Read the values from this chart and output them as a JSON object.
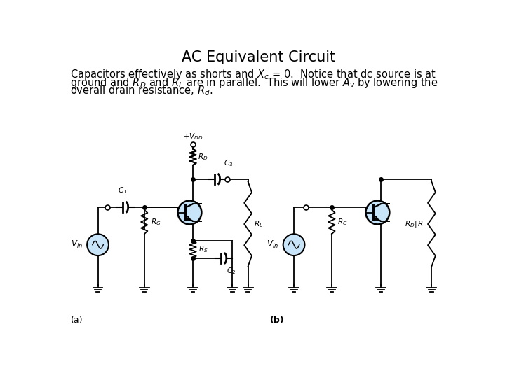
{
  "title": "AC Equivalent Circuit",
  "title_fontsize": 15,
  "body_fontsize": 10.5,
  "background_color": "#ffffff",
  "label_a": "(a)",
  "label_b": "(b)",
  "cc": "#000000",
  "transistor_fill": "#c8e4f8",
  "line_width": 1.3
}
